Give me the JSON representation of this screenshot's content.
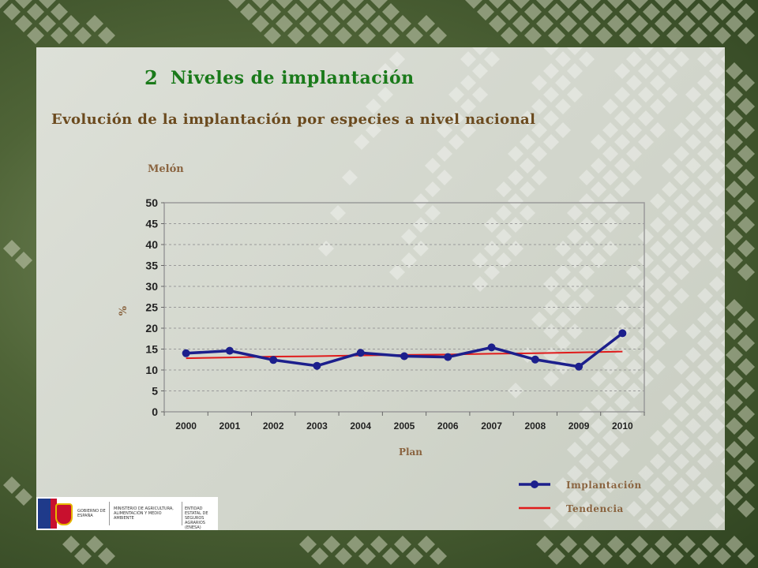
{
  "header": {
    "section_number": "2",
    "section_title": "Niveles de implantación",
    "subtitle": "Evolución de la implantación por especies a nivel nacional"
  },
  "chart_data": {
    "type": "line",
    "title": "Melón",
    "xlabel": "Plan",
    "ylabel": "%",
    "categories": [
      "2000",
      "2001",
      "2002",
      "2003",
      "2004",
      "2005",
      "2006",
      "2007",
      "2008",
      "2009",
      "2010"
    ],
    "ylim": [
      0,
      50
    ],
    "yticks": [
      0,
      5,
      10,
      15,
      20,
      25,
      30,
      35,
      40,
      45,
      50
    ],
    "grid": true,
    "legend_position": "bottom-right",
    "series": [
      {
        "name": "Implantación",
        "color": "#1c1f8c",
        "marker": "circle",
        "values": [
          14.0,
          14.6,
          12.4,
          11.0,
          14.1,
          13.3,
          13.1,
          15.4,
          12.5,
          10.8,
          18.8
        ]
      },
      {
        "name": "Tendencia",
        "color": "#e01b1b",
        "marker": "none",
        "values": [
          12.8,
          13.0,
          13.2,
          13.3,
          13.5,
          13.6,
          13.7,
          13.9,
          14.0,
          14.2,
          14.4
        ]
      }
    ]
  },
  "footer": {
    "logo1": "GOBIERNO DE ESPAÑA",
    "logo2": "MINISTERIO DE AGRICULTURA, ALIMENTACIÓN Y MEDIO AMBIENTE",
    "logo3": "ENTIDAD ESTATAL DE SEGUROS AGRARIOS (ENESA)"
  },
  "colors": {
    "title_green": "#1a7a1a",
    "subtitle_brown": "#6b4a1e",
    "label_brown": "#8a6440",
    "plot_border": "#9a9a9a"
  }
}
